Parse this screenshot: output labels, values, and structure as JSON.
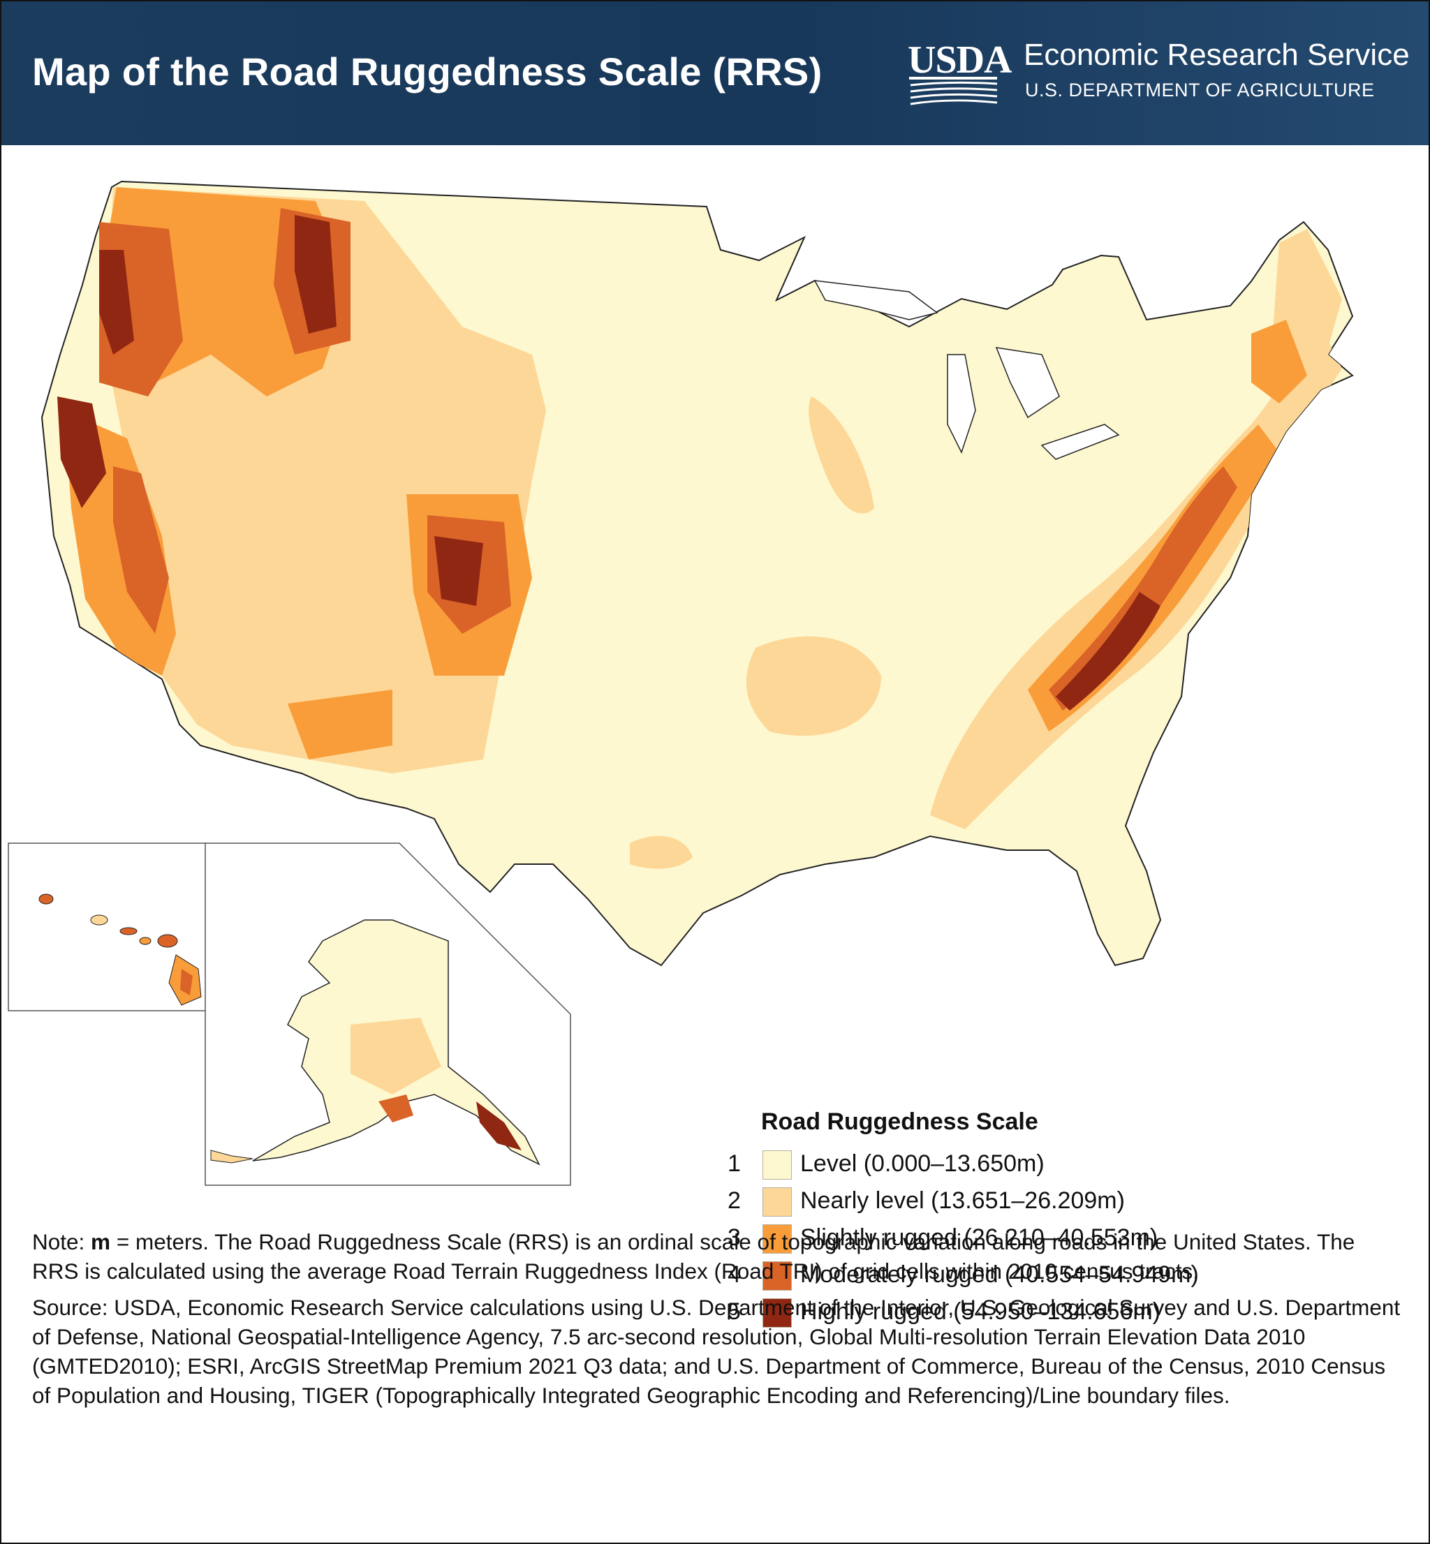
{
  "header": {
    "title": "Map of the Road Ruggedness Scale (RRS)",
    "logo_text": "USDA",
    "agency_name": "Economic Research Service",
    "department": "U.S. DEPARTMENT OF AGRICULTURE",
    "colors": {
      "banner": "#1c3c5e",
      "text": "#ffffff"
    }
  },
  "legend": {
    "title": "Road Ruggedness Scale",
    "classes": [
      {
        "num": "1",
        "label": "Level (0.000–13.650m)",
        "color": "#fdf8d0"
      },
      {
        "num": "2",
        "label": "Nearly level (13.651–26.209m)",
        "color": "#fdd797"
      },
      {
        "num": "3",
        "label": "Slightly rugged (26.210–40.553m)",
        "color": "#f99d3a"
      },
      {
        "num": "4",
        "label": "Moderately rugged (40.554–54.949m)",
        "color": "#da6327"
      },
      {
        "num": "5",
        "label": "Highly rugged (54.950–134.656m)",
        "color": "#8f2712"
      }
    ]
  },
  "note": {
    "prefix": "Note: ",
    "bold": "m",
    "text": " = meters. The Road Ruggedness Scale (RRS) is an ordinal scale of topographic variation along roads in the United States. The RRS is calculated using the average Road Terrain Ruggedness Index (Road TRI) of grid cells within 2010 census tracts."
  },
  "source": "Source: USDA, Economic Research Service calculations using U.S. Department of the Interior, U.S. Geological Survey and U.S. Department of Defense, National Geospatial-Intelligence Agency, 7.5 arc-second resolution, Global Multi-resolution Terrain Elevation Data 2010 (GMTED2010); ESRI, ArcGIS StreetMap Premium 2021 Q3 data; and U.S. Department of Commerce, Bureau of the Census, 2010 Census of Population and Housing, TIGER (Topographically Integrated Geographic Encoding and Referencing)/Line boundary files."
}
